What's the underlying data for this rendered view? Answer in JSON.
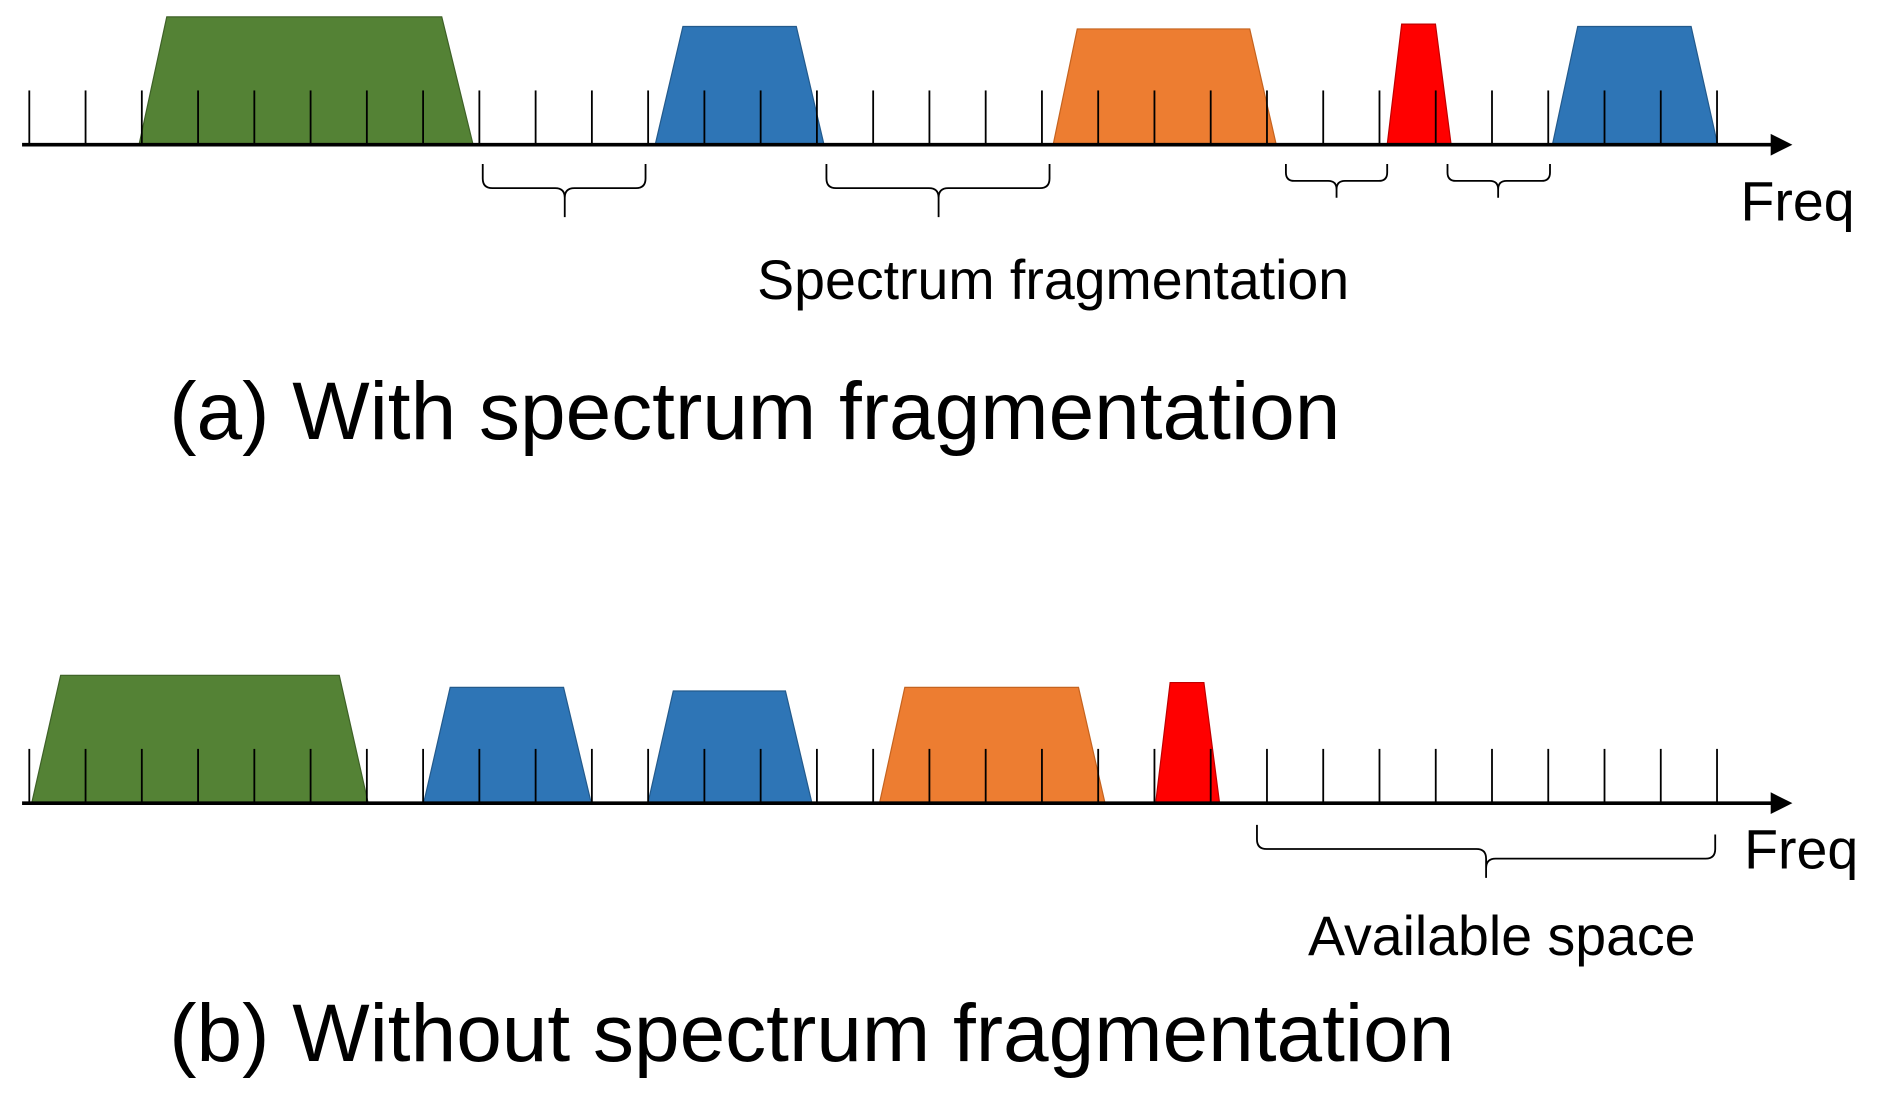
{
  "panels": [
    {
      "axis_label": "Freq",
      "annotation": "Spectrum fragmentation",
      "caption": "(a) With spectrum fragmentation"
    },
    {
      "axis_label": "Freq",
      "annotation": "Available space",
      "caption": "(b) Without spectrum fragmentation"
    }
  ]
}
